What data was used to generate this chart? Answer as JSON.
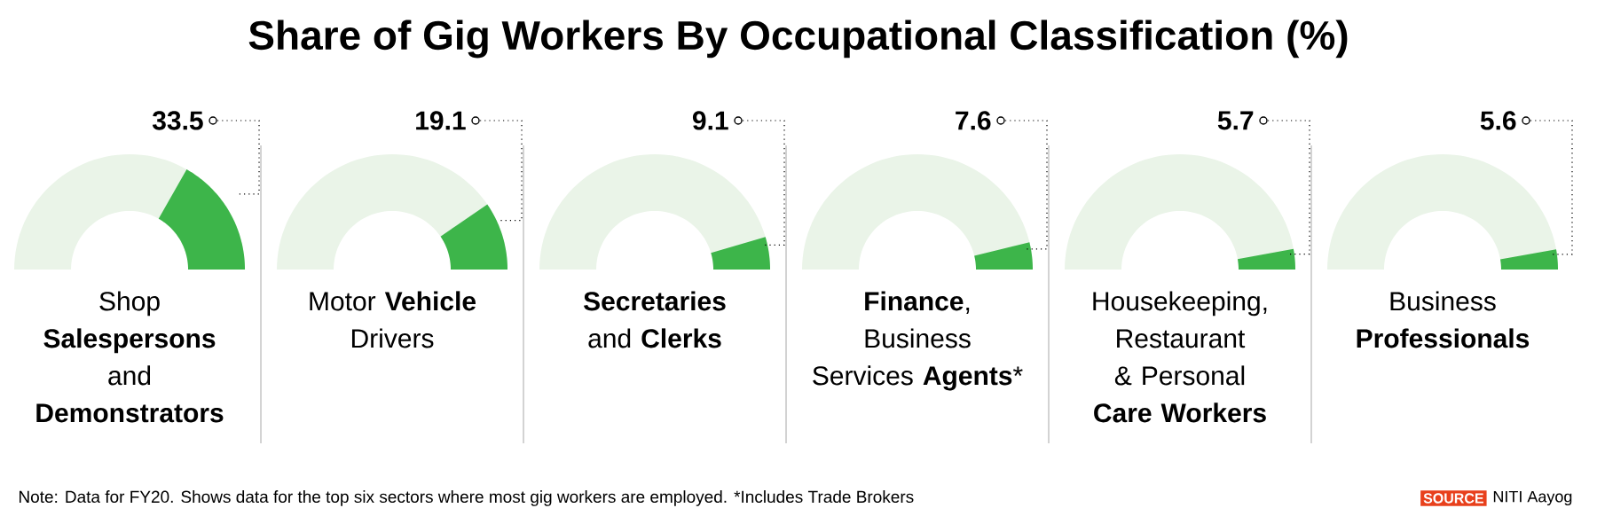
{
  "chart_data": {
    "type": "other",
    "title": "Share of Gig Workers By Occupational Classification (%)",
    "categories": [
      "Shop **Salespersons** and **Demonstrators**",
      "Motor **Vehicle** Drivers",
      "**Secretaries** and **Clerks**",
      "**Finance**, Business Services **Agents***",
      "Housekeeping, Restaurant & Personal **Care Workers**",
      "Business **Professionals**"
    ],
    "values": [
      33.5,
      19.1,
      9.1,
      7.6,
      5.7,
      5.6
    ],
    "color": "#3db54a",
    "data_labels": true,
    "annotations": [
      "Note: Data for FY20. Shows data for the top six sectors where most gig workers are employed. *Includes Trade Brokers",
      "SOURCE",
      "NITI Aayog"
    ]
  }
}
